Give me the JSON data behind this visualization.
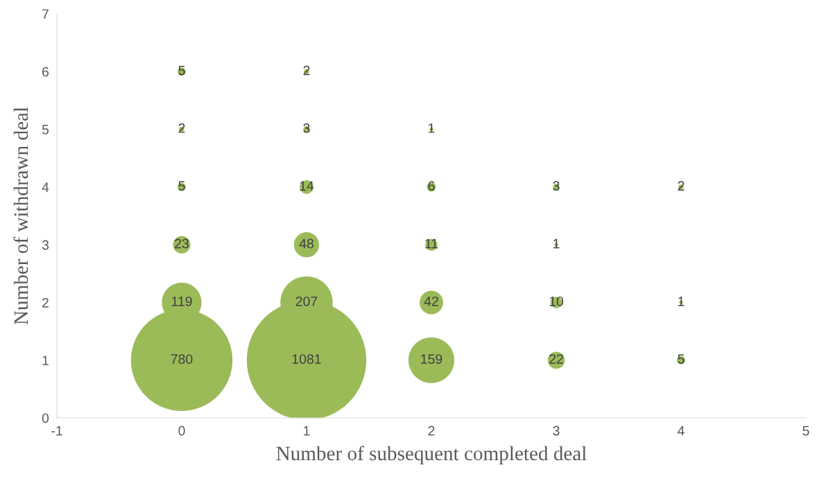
{
  "chart_data": {
    "type": "bubble",
    "xlabel": "Number of subsequent completed deal",
    "ylabel": "Number of withdrawn deal",
    "x": [
      0,
      0,
      0,
      0,
      0,
      0,
      1,
      1,
      1,
      1,
      1,
      1,
      2,
      2,
      2,
      2,
      2,
      3,
      3,
      3,
      3,
      4,
      4,
      4
    ],
    "values": [
      1,
      2,
      3,
      4,
      5,
      6,
      1,
      2,
      3,
      4,
      5,
      6,
      1,
      2,
      3,
      4,
      5,
      1,
      2,
      3,
      4,
      1,
      2,
      4
    ],
    "sizes": [
      780,
      119,
      23,
      5,
      2,
      5,
      1081,
      207,
      48,
      14,
      3,
      2,
      159,
      42,
      11,
      6,
      1,
      22,
      10,
      1,
      3,
      5,
      1,
      2
    ],
    "value_labels": [
      "780",
      "119",
      "23",
      "5",
      "2",
      "5",
      "1081",
      "207",
      "48",
      "14",
      "3",
      "2",
      "159",
      "42",
      "11",
      "6",
      "1",
      "22",
      "10",
      "1",
      "3",
      "5",
      "1",
      "2"
    ],
    "color": "#9bbb59",
    "xlim": [
      -1,
      5
    ],
    "xticks": [
      -1,
      0,
      1,
      2,
      3,
      4,
      5
    ],
    "ylim": [
      0,
      7
    ],
    "yticks": [
      0,
      1,
      2,
      3,
      4,
      5,
      6,
      7
    ],
    "grid": false,
    "legend": false
  }
}
